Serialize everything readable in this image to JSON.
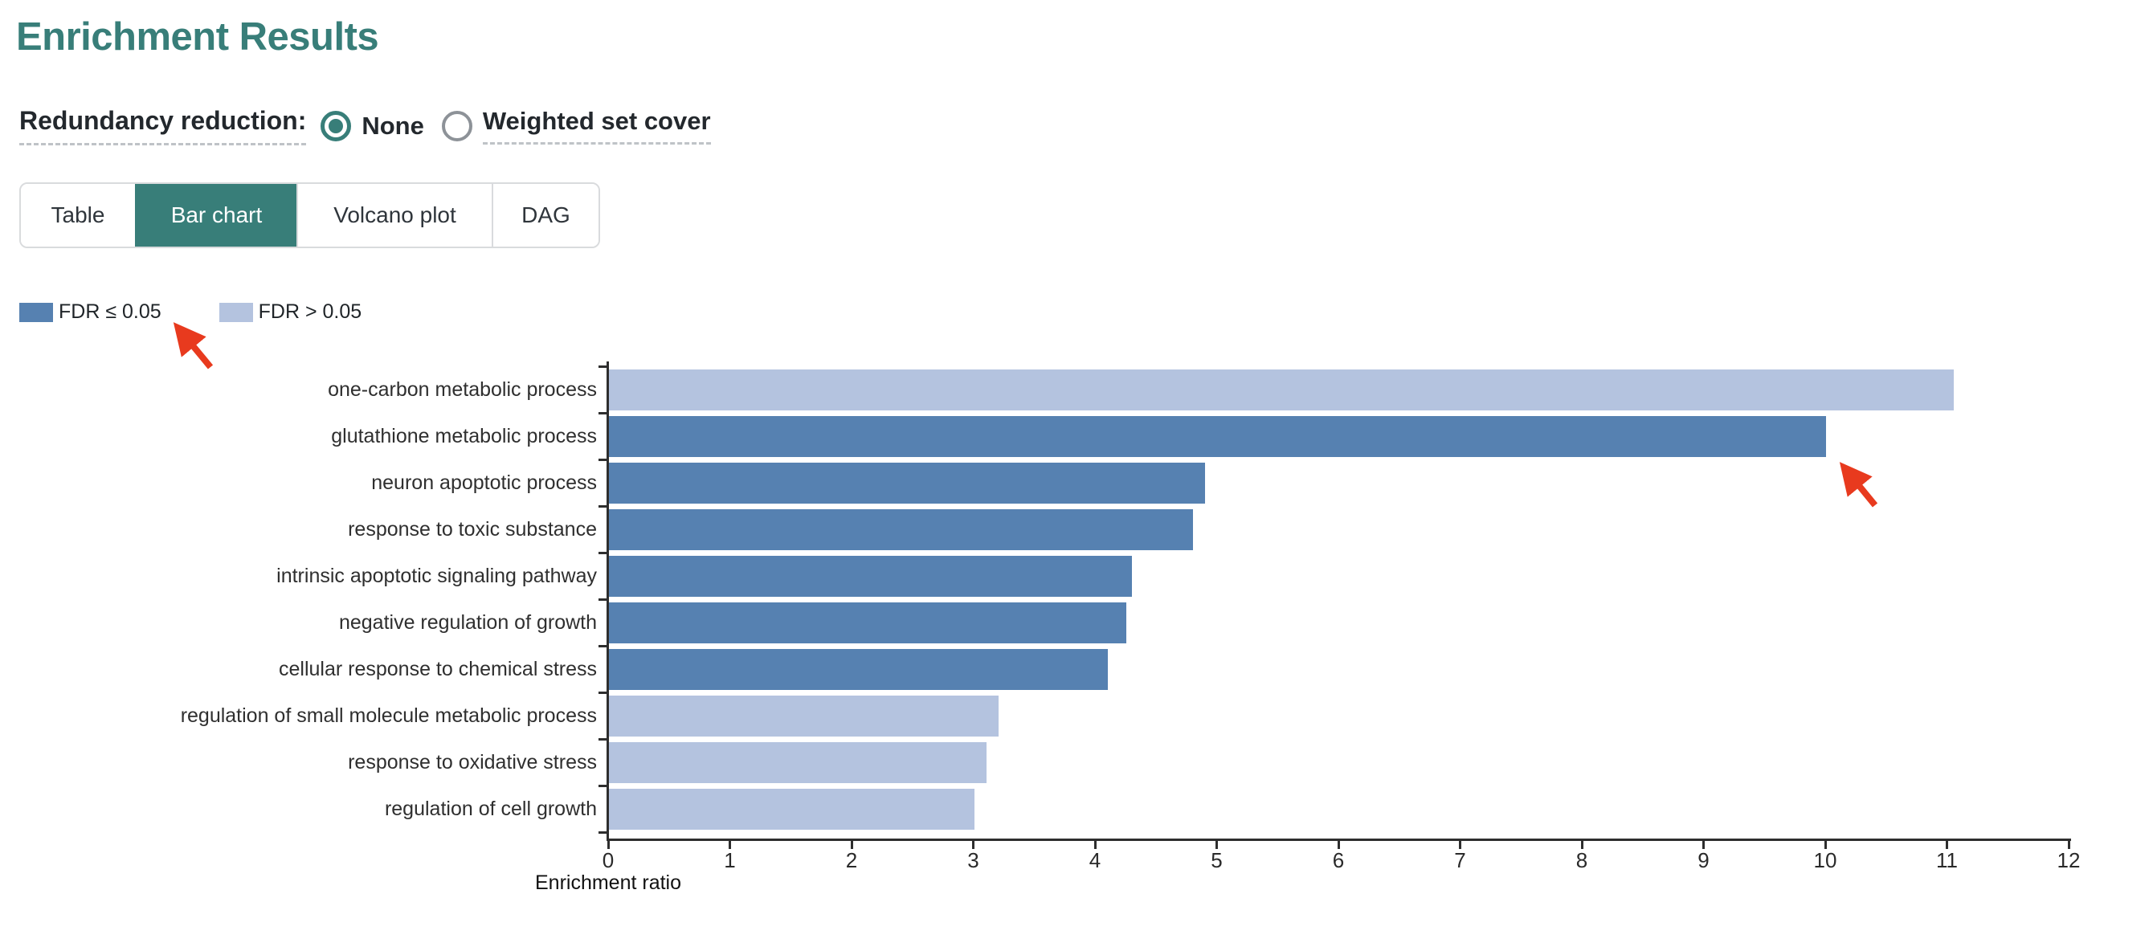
{
  "page": {
    "title": "Enrichment Results"
  },
  "controls": {
    "redundancy_label": "Redundancy reduction:",
    "options": [
      {
        "label": "None",
        "selected": true,
        "dashed_underline": false
      },
      {
        "label": "Weighted set cover",
        "selected": false,
        "dashed_underline": true
      }
    ]
  },
  "tabs": [
    {
      "label": "Table",
      "active": false
    },
    {
      "label": "Bar chart",
      "active": true
    },
    {
      "label": "Volcano plot",
      "active": false
    },
    {
      "label": "DAG",
      "active": false
    }
  ],
  "legend": [
    {
      "label": "FDR ≤ 0.05",
      "color": "#5681B1"
    },
    {
      "label": "FDR > 0.05",
      "color": "#B4C3DF"
    }
  ],
  "colors": {
    "accent_teal": "#387E79",
    "bar_dark": "#5681B1",
    "bar_light": "#B4C3DF",
    "arrow_red": "#E83A1E",
    "text_dark": "#23282D",
    "border": "#D9DBDD",
    "underline": "#BFC3C7",
    "axis": "#2E2E2E"
  },
  "annotations": {
    "arrow_color": "#E83A1E",
    "arrows": [
      {
        "points_at": "FDR ≤ 0.05 legend entry"
      },
      {
        "points_at": "end of glutathione metabolic process bar"
      }
    ]
  },
  "chart_data": {
    "type": "bar",
    "orientation": "horizontal",
    "title": "",
    "xlabel": "Enrichment ratio",
    "ylabel": "",
    "xlim": [
      0,
      12
    ],
    "xticks": [
      0,
      1,
      2,
      3,
      4,
      5,
      6,
      7,
      8,
      9,
      10,
      11,
      12
    ],
    "grid": false,
    "legend_position": "top-left",
    "categories": [
      "one-carbon metabolic process",
      "glutathione metabolic process",
      "neuron apoptotic process",
      "response to toxic substance",
      "intrinsic apoptotic signaling pathway",
      "negative regulation of growth",
      "cellular response to chemical stress",
      "regulation of small molecule metabolic process",
      "response to oxidative stress",
      "regulation of cell growth"
    ],
    "values": [
      11.05,
      10.0,
      4.9,
      4.8,
      4.3,
      4.25,
      4.1,
      3.2,
      3.1,
      3.0
    ],
    "significant_fdr_le_0_05": [
      false,
      true,
      true,
      true,
      true,
      true,
      true,
      false,
      false,
      false
    ],
    "series_colors": {
      "FDR ≤ 0.05": "#5681B1",
      "FDR > 0.05": "#B4C3DF"
    }
  }
}
